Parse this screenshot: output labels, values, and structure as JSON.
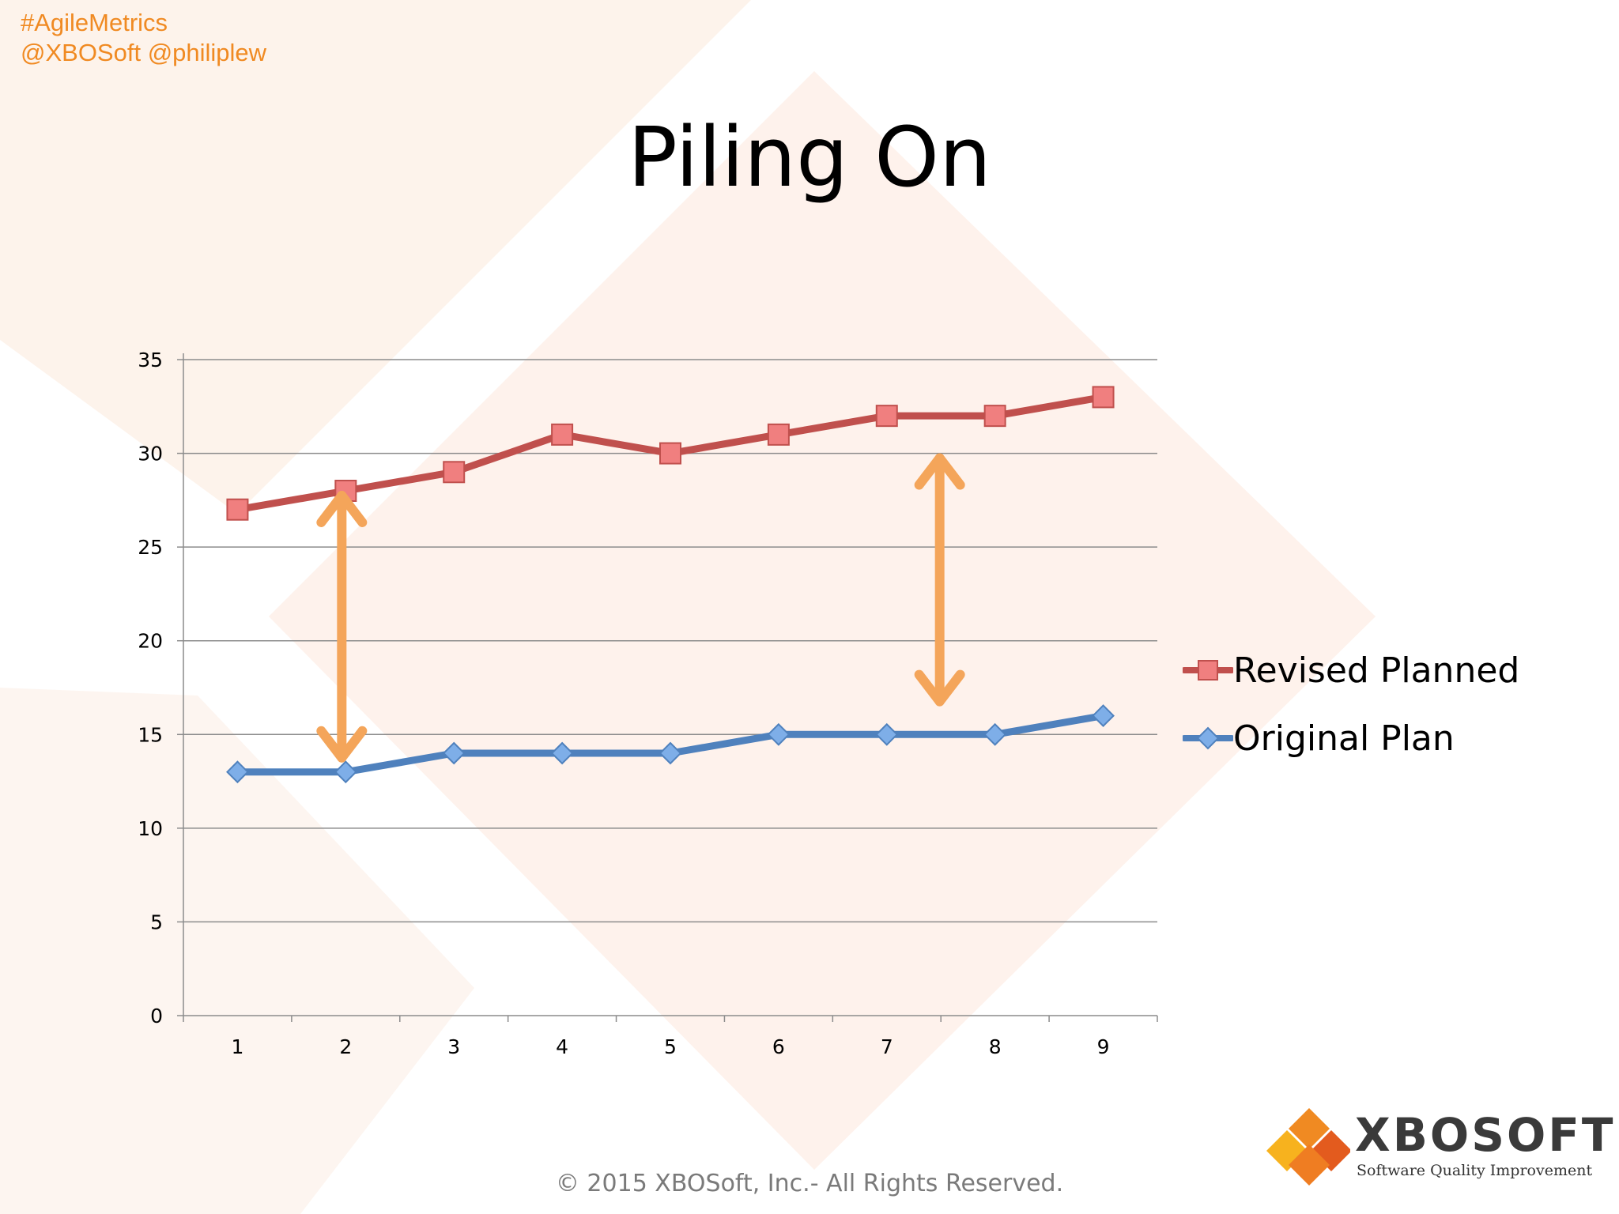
{
  "header": {
    "hashtag": "#AgileMetrics",
    "handles": "@XBOSoft @philiplew"
  },
  "slide": {
    "title": "Piling On",
    "footer": "© 2015 XBOSoft, Inc.- All Rights Reserved."
  },
  "logo": {
    "name": "XBOSOFT",
    "tagline": "Software Quality Improvement"
  },
  "colors": {
    "accent_orange": "#f08a22",
    "revised": "#c0504d",
    "revised_marker": "#f07f7f",
    "original": "#4f81bd",
    "original_marker": "#7eaee8",
    "arrow": "#f4a55a"
  },
  "chart_data": {
    "type": "line",
    "title": "",
    "xlabel": "",
    "ylabel": "",
    "categories": [
      "1",
      "2",
      "3",
      "4",
      "5",
      "6",
      "7",
      "8",
      "9"
    ],
    "ylim": [
      0,
      35
    ],
    "yticks": [
      0,
      5,
      10,
      15,
      20,
      25,
      30,
      35
    ],
    "grid": true,
    "legend_position": "right",
    "series": [
      {
        "name": "Revised Planned",
        "marker": "square",
        "values": [
          27,
          28,
          29,
          31,
          30,
          31,
          32,
          32,
          33
        ]
      },
      {
        "name": "Original Plan",
        "marker": "diamond",
        "values": [
          13,
          13,
          14,
          14,
          14,
          15,
          15,
          15,
          16
        ]
      }
    ],
    "annotations": [
      {
        "type": "double-arrow",
        "category": "2",
        "from": 13,
        "to": 28
      },
      {
        "type": "double-arrow",
        "category": "8",
        "from": 16,
        "to": 30
      }
    ]
  }
}
